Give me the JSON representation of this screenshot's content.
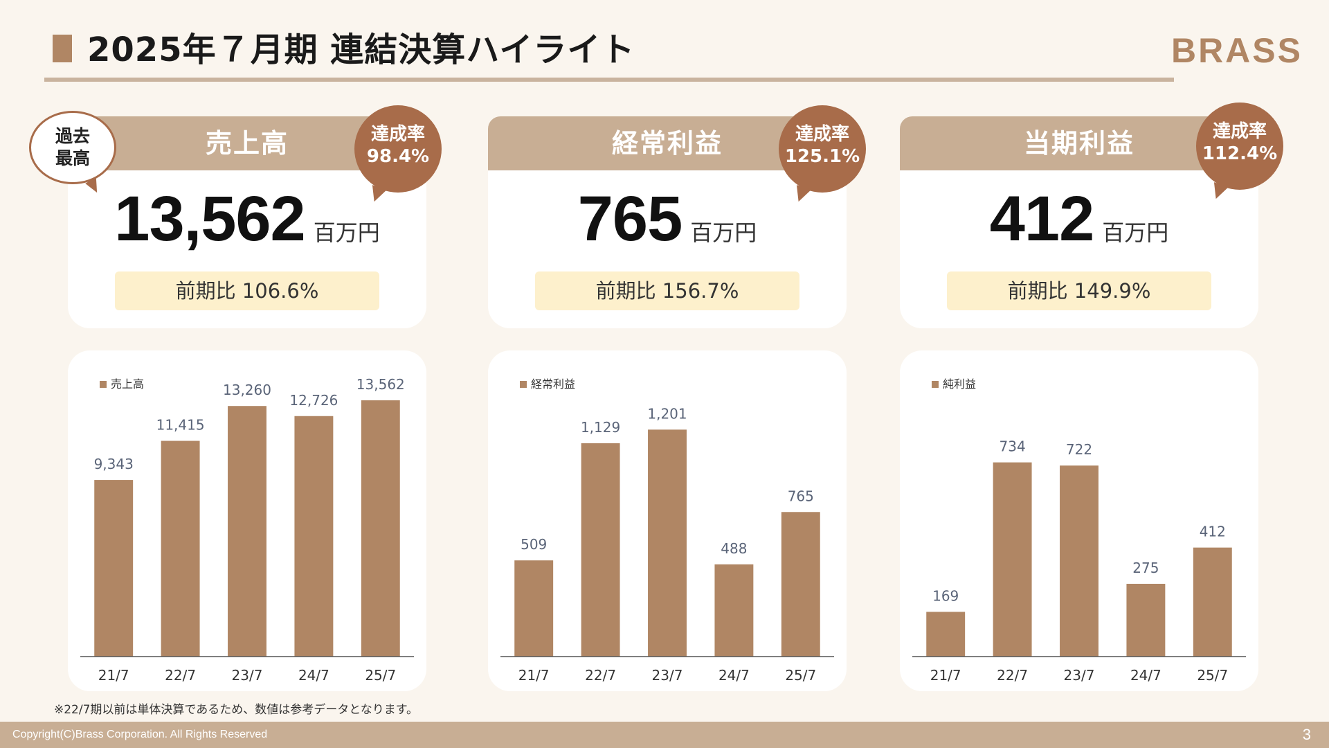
{
  "page": {
    "title": "2025年７月期 連結決算ハイライト",
    "brand": "BRASS",
    "footnote": "※22/7期以前は単体決算であるため、数値は参考データとなります。",
    "copyright": "Copyright(C)Brass Corporation. All Rights Reserved",
    "page_number": "3"
  },
  "colors": {
    "accent": "#b08664",
    "bar": "#b08664",
    "header": "#c8ae94",
    "bubble": "#a86c4a",
    "highlight": "#fdf0cc",
    "footer": "#c8ae94"
  },
  "kpis": [
    {
      "label": "売上高",
      "value": "13,562",
      "unit": "百万円",
      "yoy": "前期比 106.6%",
      "rate_label": "達成率",
      "rate_value": "98.4%",
      "badge": "過去\n最高"
    },
    {
      "label": "経常利益",
      "value": "765",
      "unit": "百万円",
      "yoy": "前期比 156.7%",
      "rate_label": "達成率",
      "rate_value": "125.1%"
    },
    {
      "label": "当期利益",
      "value": "412",
      "unit": "百万円",
      "yoy": "前期比 149.9%",
      "rate_label": "達成率",
      "rate_value": "112.4%"
    }
  ],
  "chart_data": [
    {
      "type": "bar",
      "categories": [
        "21/7",
        "22/7",
        "23/7",
        "24/7",
        "25/7"
      ],
      "series": [
        {
          "name": "売上高",
          "values": [
            9343,
            11415,
            13260,
            12726,
            13562
          ]
        }
      ],
      "value_labels": [
        "9,343",
        "11,415",
        "13,260",
        "12,726",
        "13,562"
      ],
      "ylim": [
        0,
        14000
      ],
      "legend": "top-left",
      "grid": false
    },
    {
      "type": "bar",
      "categories": [
        "21/7",
        "22/7",
        "23/7",
        "24/7",
        "25/7"
      ],
      "series": [
        {
          "name": "経常利益",
          "values": [
            509,
            1129,
            1201,
            488,
            765
          ]
        }
      ],
      "value_labels": [
        "509",
        "1,129",
        "1,201",
        "488",
        "765"
      ],
      "ylim": [
        0,
        1400
      ],
      "legend": "top-left",
      "grid": false
    },
    {
      "type": "bar",
      "categories": [
        "21/7",
        "22/7",
        "23/7",
        "24/7",
        "25/7"
      ],
      "series": [
        {
          "name": "純利益",
          "values": [
            169,
            734,
            722,
            275,
            412
          ]
        }
      ],
      "value_labels": [
        "169",
        "734",
        "722",
        "275",
        "412"
      ],
      "ylim": [
        0,
        1000
      ],
      "legend": "top-left",
      "grid": false
    }
  ]
}
